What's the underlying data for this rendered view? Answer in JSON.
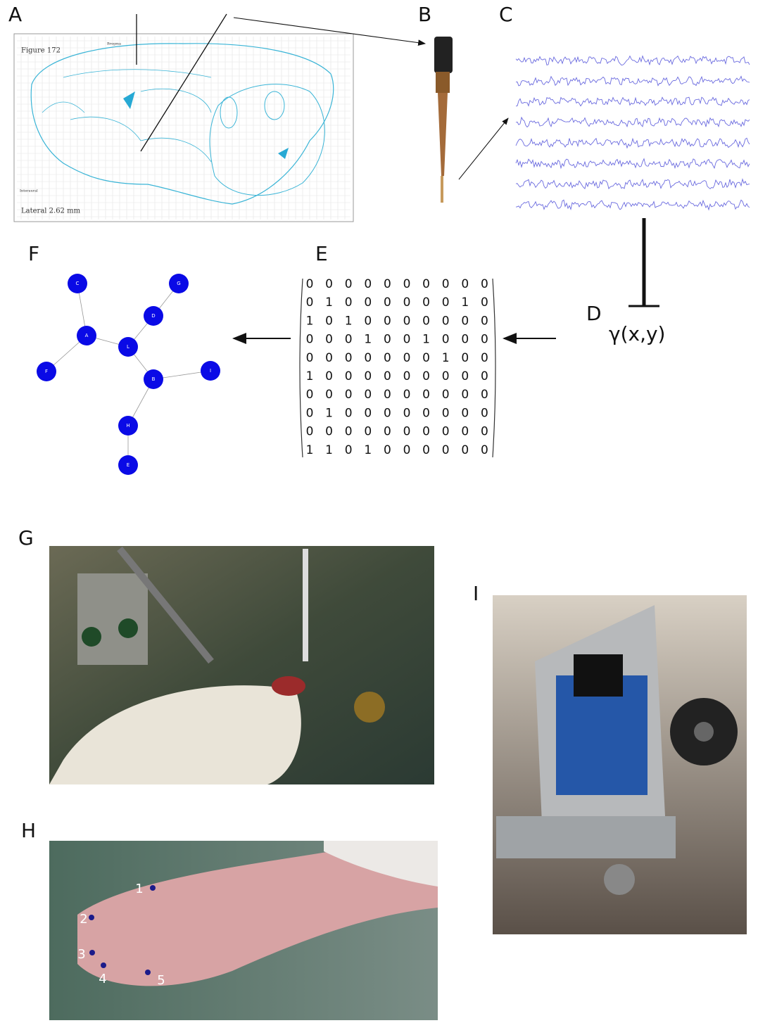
{
  "panels": {
    "a": {
      "label": "A",
      "atlas_title": "Figure 172",
      "atlas_lateral": "Lateral 2.62 mm",
      "bregma": "Bregma",
      "interaural": "Interaural"
    },
    "b": {
      "label": "B"
    },
    "c": {
      "label": "C"
    },
    "d": {
      "label": "D",
      "formula": "γ(x,y)"
    },
    "e": {
      "label": "E",
      "matrix": [
        [
          0,
          0,
          0,
          0,
          0,
          0,
          0,
          0,
          0,
          0
        ],
        [
          0,
          1,
          0,
          0,
          0,
          0,
          0,
          0,
          1,
          0
        ],
        [
          1,
          0,
          1,
          0,
          0,
          0,
          0,
          0,
          0,
          0
        ],
        [
          0,
          0,
          0,
          1,
          0,
          0,
          1,
          0,
          0,
          0
        ],
        [
          0,
          0,
          0,
          0,
          0,
          0,
          0,
          1,
          0,
          0
        ],
        [
          1,
          0,
          0,
          0,
          0,
          0,
          0,
          0,
          0,
          0
        ],
        [
          0,
          0,
          0,
          0,
          0,
          0,
          0,
          0,
          0,
          0
        ],
        [
          0,
          1,
          0,
          0,
          0,
          0,
          0,
          0,
          0,
          0
        ],
        [
          0,
          0,
          0,
          0,
          0,
          0,
          0,
          0,
          0,
          0
        ],
        [
          1,
          1,
          0,
          1,
          0,
          0,
          0,
          0,
          0,
          0
        ]
      ]
    },
    "f": {
      "label": "F",
      "nodes": [
        "C",
        "G",
        "D",
        "A",
        "L",
        "F",
        "B",
        "I",
        "H",
        "E"
      ]
    },
    "g": {
      "label": "G"
    },
    "h": {
      "label": "H",
      "digits": [
        "1",
        "2",
        "3",
        "4",
        "5"
      ]
    },
    "i": {
      "label": "I"
    }
  }
}
